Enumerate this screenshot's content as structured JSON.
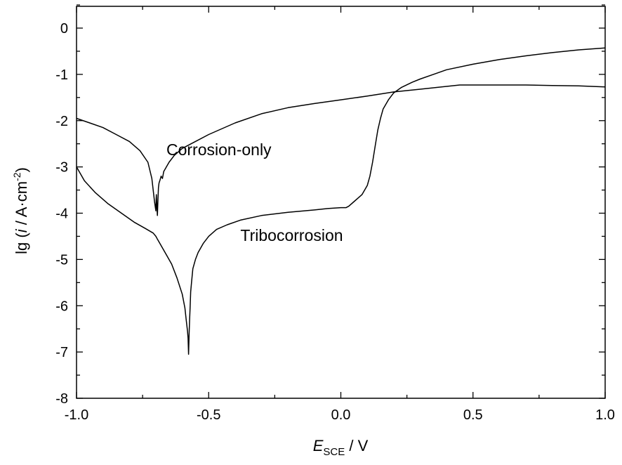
{
  "chart_data": {
    "type": "line",
    "title": "",
    "xlabel": {
      "main": "E",
      "subscript": "SCE",
      "unit": " / V"
    },
    "ylabel": {
      "prefix": "lg (",
      "var": "i",
      "unit": " / A·cm",
      "sup": "-2",
      "suffix": ")"
    },
    "xlim": [
      -1.0,
      1.0
    ],
    "ylim": [
      -8,
      0.5
    ],
    "x_ticks": [
      -1.0,
      -0.5,
      0.0,
      0.5,
      1.0
    ],
    "x_tick_labels": [
      "-1.0",
      "-0.5",
      "0.0",
      "0.5",
      "1.0"
    ],
    "y_ticks": [
      0,
      -1,
      -2,
      -3,
      -4,
      -5,
      -6,
      -7,
      -8
    ],
    "y_tick_labels": [
      "0",
      "-1",
      "-2",
      "-3",
      "-4",
      "-5",
      "-6",
      "-7",
      "-8"
    ],
    "grid": false,
    "annotations": [
      {
        "text": "Corrosion-only",
        "x": -0.66,
        "y": -2.75
      },
      {
        "text": "Tribocorrosion",
        "x": -0.38,
        "y": -4.6
      }
    ],
    "series": [
      {
        "x": [
          -1.0,
          -0.95,
          -0.9,
          -0.85,
          -0.8,
          -0.76,
          -0.73,
          -0.715,
          -0.71,
          -0.705,
          -0.7,
          -0.698,
          -0.696,
          -0.694,
          -0.692,
          -0.69,
          -0.688,
          -0.685,
          -0.68,
          -0.675,
          -0.67,
          -0.66,
          -0.65,
          -0.63,
          -0.6,
          -0.55,
          -0.5,
          -0.4,
          -0.3,
          -0.2,
          -0.1,
          0.0,
          0.1,
          0.2,
          0.3,
          0.4,
          0.45,
          0.5,
          0.6,
          0.7,
          0.8,
          0.9,
          1.0
        ],
        "y": [
          -1.95,
          -2.05,
          -2.15,
          -2.3,
          -2.45,
          -2.65,
          -2.9,
          -3.25,
          -3.5,
          -3.75,
          -3.95,
          -3.6,
          -3.85,
          -4.05,
          -3.7,
          -3.45,
          -3.35,
          -3.3,
          -3.2,
          -3.25,
          -3.1,
          -3.0,
          -2.9,
          -2.75,
          -2.6,
          -2.45,
          -2.3,
          -2.05,
          -1.85,
          -1.72,
          -1.63,
          -1.55,
          -1.47,
          -1.38,
          -1.32,
          -1.26,
          -1.23,
          -1.23,
          -1.23,
          -1.23,
          -1.24,
          -1.25,
          -1.27
        ]
      },
      {
        "x": [
          -1.0,
          -0.97,
          -0.93,
          -0.88,
          -0.83,
          -0.78,
          -0.74,
          -0.71,
          -0.7,
          -0.695,
          -0.69,
          -0.68,
          -0.66,
          -0.64,
          -0.62,
          -0.6,
          -0.59,
          -0.585,
          -0.58,
          -0.578,
          -0.576,
          -0.574,
          -0.572,
          -0.57,
          -0.568,
          -0.565,
          -0.56,
          -0.55,
          -0.54,
          -0.52,
          -0.5,
          -0.47,
          -0.43,
          -0.38,
          -0.3,
          -0.2,
          -0.1,
          -0.05,
          0.0,
          0.02,
          0.03,
          0.05,
          0.08,
          0.1,
          0.11,
          0.12,
          0.13,
          0.14,
          0.15,
          0.16,
          0.18,
          0.2,
          0.23,
          0.27,
          0.3,
          0.35,
          0.4,
          0.5,
          0.6,
          0.7,
          0.8,
          0.9,
          1.0
        ],
        "y": [
          -3.0,
          -3.3,
          -3.55,
          -3.8,
          -4.0,
          -4.2,
          -4.33,
          -4.43,
          -4.5,
          -4.55,
          -4.6,
          -4.7,
          -4.9,
          -5.1,
          -5.4,
          -5.75,
          -6.05,
          -6.3,
          -6.55,
          -6.7,
          -7.05,
          -6.6,
          -6.3,
          -6.0,
          -5.7,
          -5.5,
          -5.2,
          -5.0,
          -4.85,
          -4.65,
          -4.5,
          -4.35,
          -4.25,
          -4.15,
          -4.05,
          -3.98,
          -3.93,
          -3.9,
          -3.88,
          -3.88,
          -3.85,
          -3.75,
          -3.6,
          -3.4,
          -3.2,
          -2.9,
          -2.55,
          -2.2,
          -1.95,
          -1.75,
          -1.55,
          -1.4,
          -1.28,
          -1.17,
          -1.1,
          -1.0,
          -0.9,
          -0.78,
          -0.68,
          -0.6,
          -0.53,
          -0.47,
          -0.43
        ]
      }
    ]
  }
}
